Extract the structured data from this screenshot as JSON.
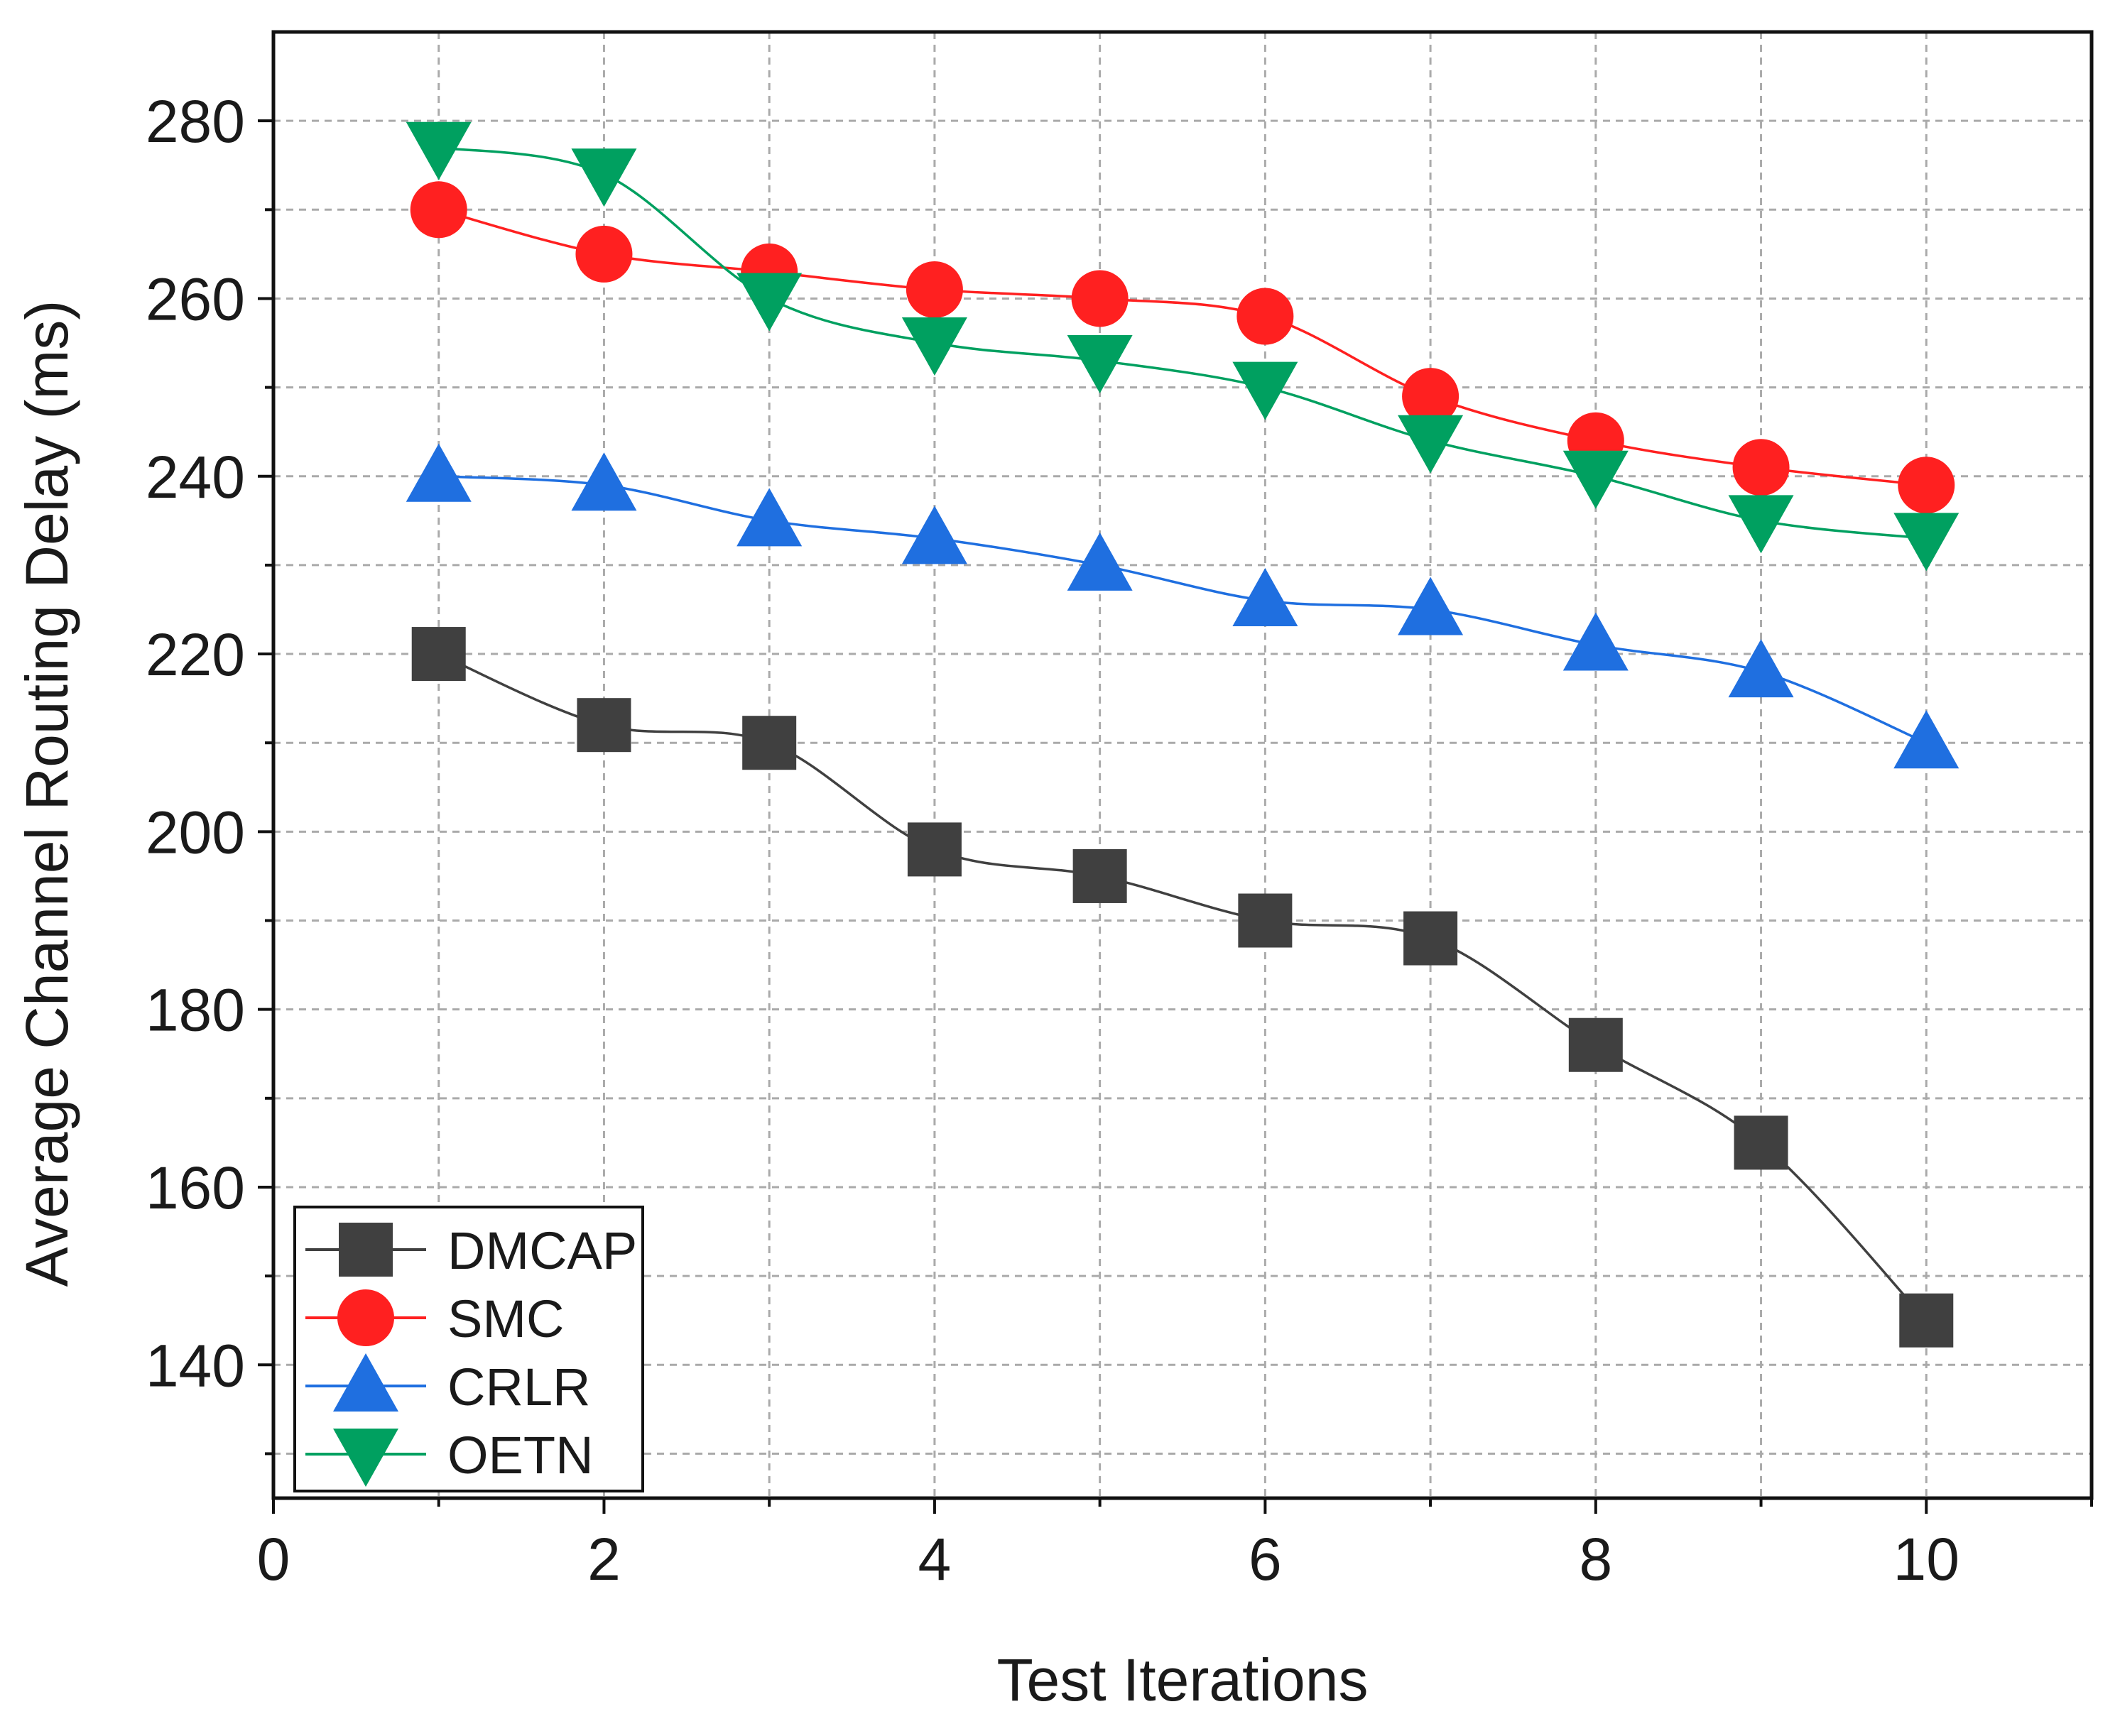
{
  "chart_data": {
    "type": "line",
    "title": "",
    "xlabel": "Test Iterations",
    "ylabel": "Average Channel Routing Delay (ms)",
    "xlim": [
      0,
      11
    ],
    "ylim": [
      125,
      290
    ],
    "xticks": [
      0,
      2,
      4,
      6,
      8,
      10
    ],
    "yticks": [
      140,
      160,
      180,
      200,
      220,
      240,
      260,
      280
    ],
    "grid": true,
    "legend_position": "bottom-left",
    "x": [
      1,
      2,
      3,
      4,
      5,
      6,
      7,
      8,
      9,
      10
    ],
    "series": [
      {
        "name": "DMCAP",
        "color": "#404040",
        "marker": "square",
        "values": [
          220,
          212,
          210,
          198,
          195,
          190,
          188,
          176,
          165,
          145
        ]
      },
      {
        "name": "SMC",
        "color": "#ff2020",
        "marker": "circle",
        "values": [
          270,
          265,
          263,
          261,
          260,
          258,
          249,
          244,
          241,
          239
        ]
      },
      {
        "name": "CRLR",
        "color": "#1f6fe0",
        "marker": "triangle-up",
        "values": [
          240,
          239,
          235,
          233,
          230,
          226,
          225,
          221,
          218,
          210
        ]
      },
      {
        "name": "OETN",
        "color": "#00a060",
        "marker": "triangle-down",
        "values": [
          277,
          274,
          260,
          255,
          253,
          250,
          244,
          240,
          235,
          233
        ]
      }
    ]
  }
}
